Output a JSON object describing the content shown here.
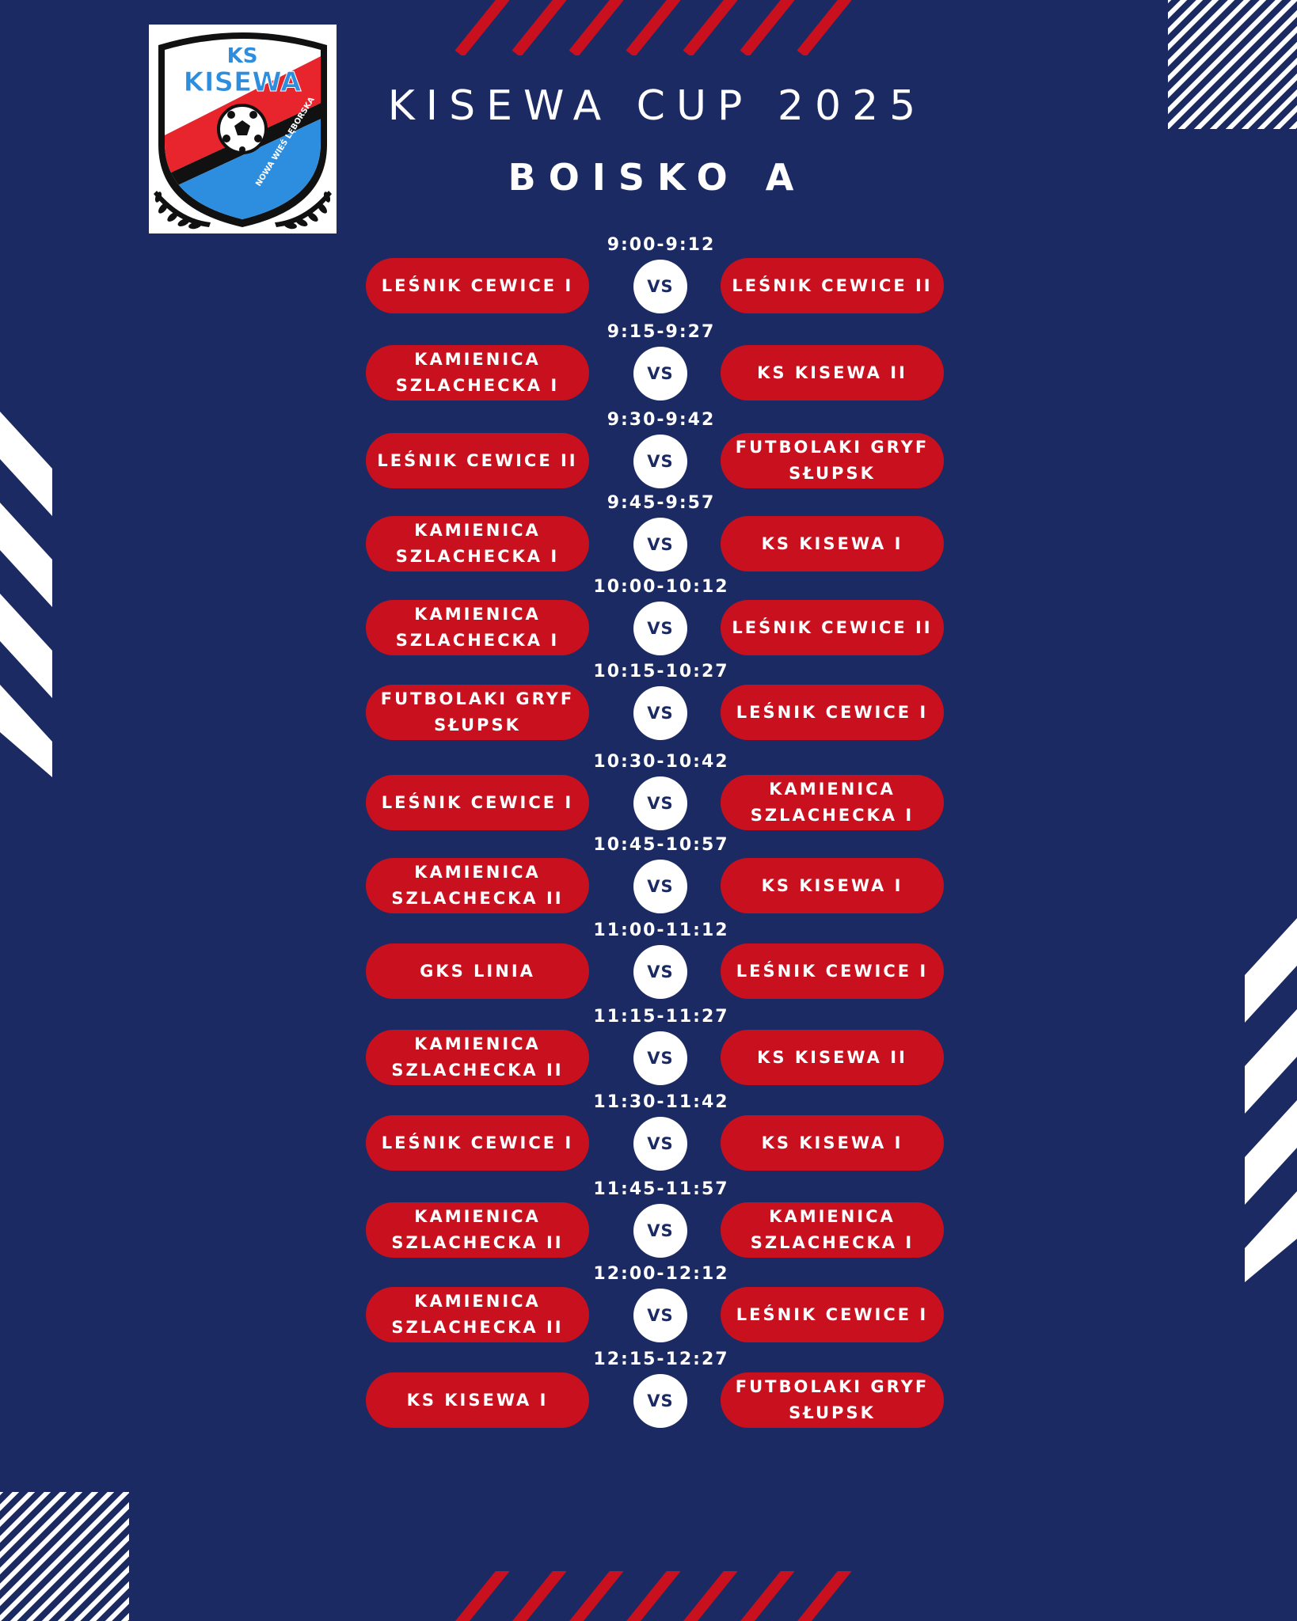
{
  "logo": {
    "line1": "KS",
    "line2": "KISEWA",
    "arc_text": "NOWA WIEŚ LĘBORSKA",
    "colors": {
      "red": "#e8242c",
      "blue": "#2d8ee0",
      "black": "#111111"
    }
  },
  "header": {
    "title": "KISEWA CUP 2025",
    "subtitle": "BOISKO A"
  },
  "vs_label": "VS",
  "colors": {
    "background": "#1b2a62",
    "team_pill": "#c9101e",
    "stripes_red": "#c9101e",
    "stripes_white": "#ffffff"
  },
  "matches": [
    {
      "time": "9:00-9:12",
      "home": "LEŚNIK CEWICE I",
      "away": "LEŚNIK CEWICE II"
    },
    {
      "time": "9:15-9:27",
      "home": "KAMIENICA SZLACHECKA I",
      "away": "KS KISEWA II"
    },
    {
      "time": "9:30-9:42",
      "home": "LEŚNIK CEWICE II",
      "away": "FUTBOLAKI GRYF SŁUPSK"
    },
    {
      "time": "9:45-9:57",
      "home": "KAMIENICA SZLACHECKA I",
      "away": "KS KISEWA I"
    },
    {
      "time": "10:00-10:12",
      "home": "KAMIENICA SZLACHECKA I",
      "away": "LEŚNIK CEWICE II"
    },
    {
      "time": "10:15-10:27",
      "home": "FUTBOLAKI GRYF SŁUPSK",
      "away": "LEŚNIK CEWICE I"
    },
    {
      "time": "10:30-10:42",
      "home": "LEŚNIK CEWICE I",
      "away": "KAMIENICA SZLACHECKA I"
    },
    {
      "time": "10:45-10:57",
      "home": "KAMIENICA SZLACHECKA II",
      "away": "KS KISEWA I"
    },
    {
      "time": "11:00-11:12",
      "home": "GKS LINIA",
      "away": "LEŚNIK CEWICE I"
    },
    {
      "time": "11:15-11:27",
      "home": "KAMIENICA SZLACHECKA II",
      "away": "KS KISEWA II"
    },
    {
      "time": "11:30-11:42",
      "home": "LEŚNIK CEWICE I",
      "away": "KS KISEWA I"
    },
    {
      "time": "11:45-11:57",
      "home": "KAMIENICA SZLACHECKA II",
      "away": "KAMIENICA SZLACHECKA I"
    },
    {
      "time": "12:00-12:12",
      "home": "KAMIENICA SZLACHECKA II",
      "away": "LEŚNIK CEWICE I"
    },
    {
      "time": "12:15-12:27",
      "home": "KS KISEWA I",
      "away": "FUTBOLAKI GRYF SŁUPSK"
    }
  ]
}
